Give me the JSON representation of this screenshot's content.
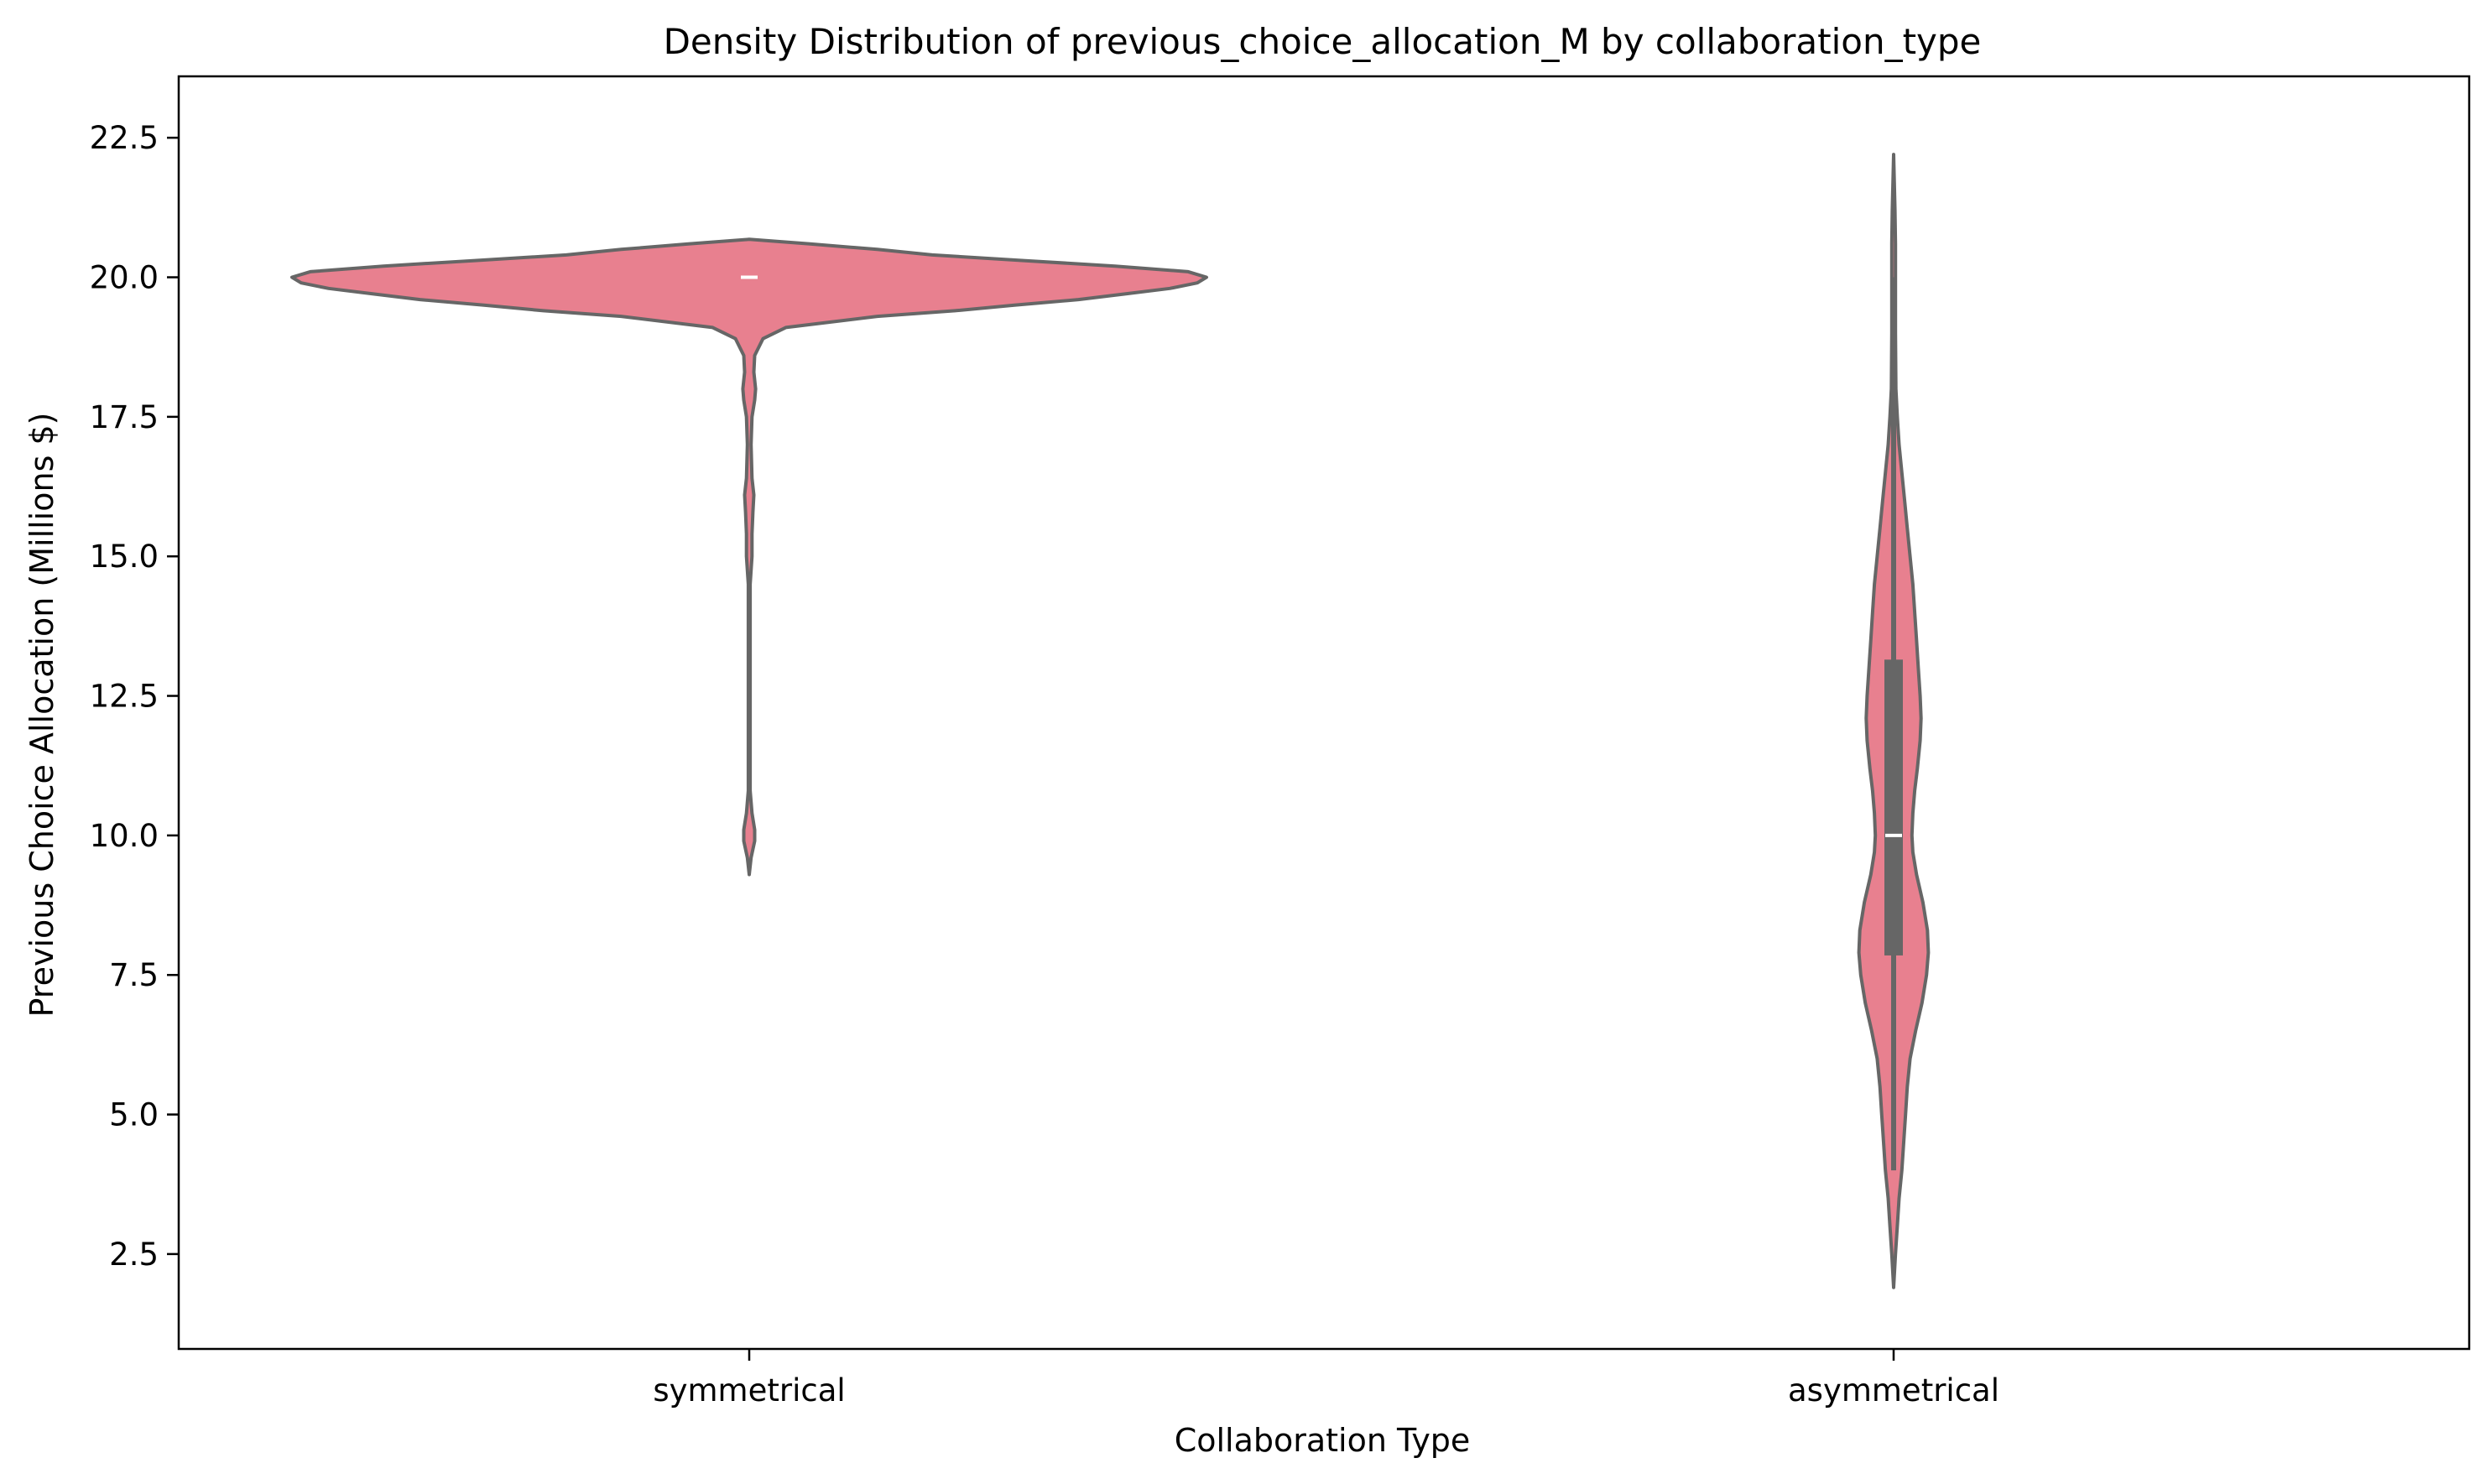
{
  "chart_data": {
    "type": "violin",
    "title": "Density Distribution of previous_choice_allocation_M by collaboration_type",
    "xlabel": "Collaboration Type",
    "ylabel": "Previous Choice Allocation (Millions $)",
    "ylim": [
      0.8,
      23.6
    ],
    "yticks": [
      "2.5",
      "5.0",
      "7.5",
      "10.0",
      "12.5",
      "15.0",
      "17.5",
      "20.0",
      "22.5"
    ],
    "ytick_values": [
      2.5,
      5.0,
      7.5,
      10.0,
      12.5,
      15.0,
      17.5,
      20.0,
      22.5
    ],
    "categories": [
      "symmetrical",
      "asymmetrical"
    ],
    "grid": false,
    "colors": {
      "fill": "#e8808f",
      "edge": "#666666",
      "median": "#ffffff",
      "axes": "#000000"
    },
    "series": [
      {
        "name": "symmetrical",
        "median": 20.0,
        "q1": 20.0,
        "q3": 20.0,
        "whisker_low": 20.0,
        "whisker_high": 20.0,
        "profile": [
          [
            9.3,
            0.0
          ],
          [
            9.6,
            0.004
          ],
          [
            9.9,
            0.012
          ],
          [
            10.1,
            0.012
          ],
          [
            10.4,
            0.006
          ],
          [
            10.8,
            0.002
          ],
          [
            12.0,
            0.002
          ],
          [
            14.5,
            0.002
          ],
          [
            15.0,
            0.006
          ],
          [
            15.4,
            0.006
          ],
          [
            15.8,
            0.008
          ],
          [
            16.1,
            0.01
          ],
          [
            16.4,
            0.006
          ],
          [
            17.0,
            0.004
          ],
          [
            17.5,
            0.006
          ],
          [
            17.8,
            0.012
          ],
          [
            18.0,
            0.014
          ],
          [
            18.3,
            0.01
          ],
          [
            18.6,
            0.012
          ],
          [
            18.9,
            0.03
          ],
          [
            19.1,
            0.08
          ],
          [
            19.3,
            0.28
          ],
          [
            19.4,
            0.45
          ],
          [
            19.5,
            0.58
          ],
          [
            19.6,
            0.72
          ],
          [
            19.7,
            0.82
          ],
          [
            19.8,
            0.92
          ],
          [
            19.9,
            0.98
          ],
          [
            20.0,
            1.0
          ],
          [
            20.1,
            0.96
          ],
          [
            20.2,
            0.8
          ],
          [
            20.3,
            0.6
          ],
          [
            20.4,
            0.4
          ],
          [
            20.5,
            0.28
          ],
          [
            20.6,
            0.13
          ],
          [
            20.68,
            0.0
          ]
        ]
      },
      {
        "name": "asymmetrical",
        "median": 10.0,
        "q1": 7.85,
        "q3": 13.15,
        "whisker_low": 4.0,
        "whisker_high": 20.0,
        "profile": [
          [
            1.9,
            0.0
          ],
          [
            2.5,
            0.004
          ],
          [
            3.0,
            0.008
          ],
          [
            3.5,
            0.012
          ],
          [
            4.0,
            0.018
          ],
          [
            4.5,
            0.022
          ],
          [
            5.0,
            0.026
          ],
          [
            5.5,
            0.03
          ],
          [
            6.0,
            0.036
          ],
          [
            6.5,
            0.048
          ],
          [
            7.0,
            0.062
          ],
          [
            7.5,
            0.072
          ],
          [
            7.9,
            0.076
          ],
          [
            8.3,
            0.074
          ],
          [
            8.8,
            0.064
          ],
          [
            9.3,
            0.05
          ],
          [
            9.7,
            0.042
          ],
          [
            10.0,
            0.04
          ],
          [
            10.4,
            0.042
          ],
          [
            10.8,
            0.046
          ],
          [
            11.2,
            0.052
          ],
          [
            11.7,
            0.058
          ],
          [
            12.1,
            0.06
          ],
          [
            12.5,
            0.058
          ],
          [
            13.0,
            0.054
          ],
          [
            13.5,
            0.05
          ],
          [
            14.0,
            0.046
          ],
          [
            14.5,
            0.042
          ],
          [
            15.0,
            0.036
          ],
          [
            15.5,
            0.03
          ],
          [
            16.0,
            0.024
          ],
          [
            16.5,
            0.018
          ],
          [
            17.0,
            0.012
          ],
          [
            17.5,
            0.008
          ],
          [
            18.0,
            0.005
          ],
          [
            19.0,
            0.004
          ],
          [
            20.0,
            0.004
          ],
          [
            20.6,
            0.004
          ],
          [
            21.2,
            0.003
          ],
          [
            22.2,
            0.0
          ]
        ]
      }
    ]
  }
}
